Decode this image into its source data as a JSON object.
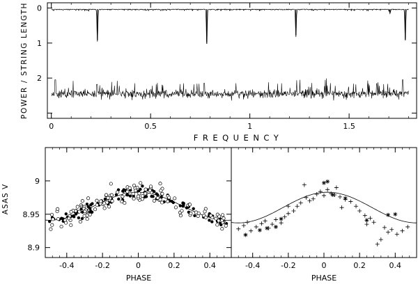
{
  "chart_data": [
    {
      "type": "line",
      "xlabel": "FREQUENCY",
      "ylabel": "POWER / STRING LENGTH",
      "xlim": [
        -0.02,
        1.84
      ],
      "ylim": [
        -0.15,
        3.15
      ],
      "x_ticks": [
        0,
        0.5,
        1,
        1.5
      ],
      "x_tick_labels": [
        "0",
        "0.5",
        "1",
        "1.5"
      ],
      "y_ticks": [
        0,
        1,
        2,
        3
      ],
      "y_tick_labels": [
        "0",
        "1",
        "2",
        ""
      ],
      "x_range": [
        0.0,
        1.8
      ],
      "series": [
        {
          "kind": "string-length",
          "baseline": 2.45,
          "noise_amplitude": 0.25,
          "dips": [
            [
              0.02,
              2.05
            ],
            [
              0.23,
              2.18
            ],
            [
              0.77,
              2.15
            ],
            [
              1.77,
              2.05
            ]
          ]
        },
        {
          "kind": "power",
          "baseline": 0.03,
          "noise_amplitude": 0.04,
          "peaks": [
            [
              0.232,
              0.92
            ],
            [
              0.783,
              1.02
            ],
            [
              1.232,
              0.78
            ],
            [
              1.706,
              0.12
            ],
            [
              1.783,
              0.92
            ]
          ]
        }
      ]
    },
    {
      "type": "scatter",
      "xlabel": "PHASE",
      "ylabel": "ASAS V",
      "xlim": [
        -0.52,
        0.52
      ],
      "ylim": [
        9.05,
        8.885
      ],
      "x_ticks": [
        -0.4,
        -0.2,
        0,
        0.2,
        0.4
      ],
      "x_tick_labels": [
        "-0.4",
        "-0.2",
        "0",
        "0.2",
        "0.4"
      ],
      "y_ticks": [
        8.9,
        8.95,
        9.0
      ],
      "y_tick_labels": [
        "8.9",
        "8.95",
        "9"
      ],
      "fit_curve": {
        "mean": 8.962,
        "amplitude": 0.021,
        "minimum_phase": 0.0
      },
      "series": [
        {
          "marker": "filled-circle",
          "count": 110,
          "scatter": 0.008
        },
        {
          "marker": "open-circle",
          "count": 130,
          "scatter": 0.018
        }
      ]
    },
    {
      "type": "scatter",
      "xlabel": "PHASE",
      "xlim": [
        -0.52,
        0.52
      ],
      "ylim": [
        9.05,
        8.885
      ],
      "x_ticks": [
        -0.4,
        -0.2,
        0,
        0.2,
        0.4
      ],
      "x_tick_labels": [
        "-0.4",
        "-0.2",
        "0",
        "0.2",
        "0.4"
      ],
      "fit_curve": {
        "mean": 8.96,
        "amplitude": 0.023,
        "minimum_phase": 0.02
      },
      "series": [
        {
          "marker": "plus",
          "points": [
            [
              -0.48,
              8.928
            ],
            [
              -0.45,
              8.933
            ],
            [
              -0.43,
              8.938
            ],
            [
              -0.41,
              8.925
            ],
            [
              -0.38,
              8.931
            ],
            [
              -0.35,
              8.936
            ],
            [
              -0.33,
              8.94
            ],
            [
              -0.31,
              8.929
            ],
            [
              -0.29,
              8.935
            ],
            [
              -0.27,
              8.942
            ],
            [
              -0.24,
              8.937
            ],
            [
              -0.22,
              8.946
            ],
            [
              -0.2,
              8.951
            ],
            [
              -0.17,
              8.955
            ],
            [
              -0.15,
              8.962
            ],
            [
              -0.13,
              8.967
            ],
            [
              -0.1,
              8.975
            ],
            [
              -0.08,
              8.97
            ],
            [
              -0.06,
              8.973
            ],
            [
              -0.04,
              8.98
            ],
            [
              -0.02,
              8.984
            ],
            [
              0.0,
              8.978
            ],
            [
              0.02,
              8.987
            ],
            [
              0.04,
              8.981
            ],
            [
              0.06,
              8.979
            ],
            [
              0.09,
              8.976
            ],
            [
              0.12,
              8.972
            ],
            [
              0.15,
              8.969
            ],
            [
              0.18,
              8.962
            ],
            [
              0.2,
              8.955
            ],
            [
              0.23,
              8.948
            ],
            [
              0.26,
              8.944
            ],
            [
              0.28,
              8.938
            ],
            [
              0.3,
              8.905
            ],
            [
              0.32,
              8.912
            ],
            [
              0.34,
              8.93
            ],
            [
              0.36,
              8.923
            ],
            [
              0.38,
              8.927
            ],
            [
              0.41,
              8.92
            ],
            [
              0.44,
              8.925
            ],
            [
              0.47,
              8.931
            ],
            [
              -0.11,
              8.994
            ],
            [
              0.07,
              8.99
            ],
            [
              -0.2,
              8.962
            ],
            [
              0.1,
              8.96
            ],
            [
              0.24,
              8.935
            ]
          ]
        },
        {
          "marker": "asterisk",
          "points": [
            [
              -0.44,
              8.919
            ],
            [
              -0.36,
              8.926
            ],
            [
              -0.32,
              8.929
            ],
            [
              -0.27,
              8.931
            ],
            [
              -0.24,
              8.943
            ],
            [
              0.0,
              8.997
            ],
            [
              0.02,
              8.999
            ],
            [
              0.05,
              8.979
            ],
            [
              0.12,
              8.974
            ],
            [
              0.24,
              8.941
            ],
            [
              0.36,
              8.949
            ],
            [
              0.4,
              8.95
            ]
          ]
        }
      ]
    }
  ]
}
